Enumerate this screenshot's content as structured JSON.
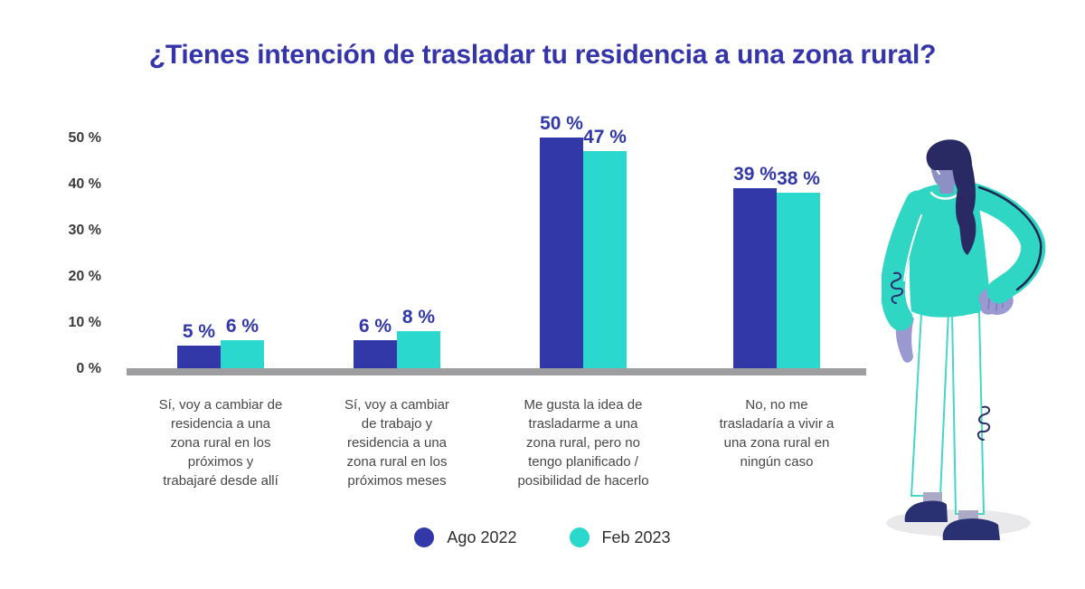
{
  "colors": {
    "series1": "#3238a8",
    "series2": "#2bd8cd",
    "title": "#3434ab",
    "value_label": "#3238a8",
    "axis_text": "#3b3b3b",
    "category_text": "#474747",
    "legend_text": "#2d2d2d",
    "baseline": "#9e9ea1"
  },
  "chart_data": {
    "type": "bar",
    "title": "¿Tienes intención de trasladar tu residencia a una zona rural?",
    "categories": [
      "Sí, voy a cambiar de\nresidencia a una\nzona rural en los\npróximos y\ntrabajaré desde allí",
      "Sí, voy a cambiar\nde trabajo y\nresidencia a una\nzona rural en los\npróximos meses",
      "Me gusta la idea de\ntrasladarme a una\nzona rural, pero no\ntengo planificado /\nposibilidad de hacerlo",
      "No, no me\ntrasladaría a vivir a\nuna zona rural en\nningún caso"
    ],
    "series": [
      {
        "name": "Ago 2022",
        "color": "#3238a8",
        "values": [
          5,
          6,
          50,
          39
        ]
      },
      {
        "name": "Feb 2023",
        "color": "#2bd8cd",
        "values": [
          6,
          8,
          47,
          38
        ]
      }
    ],
    "value_suffix": " %",
    "ylim": [
      0,
      50
    ],
    "ytick_values": [
      0,
      10,
      20,
      30,
      40,
      50
    ],
    "ytick_labels": [
      "0 %",
      "10 %",
      "20 %",
      "30 %",
      "40 %",
      "50 %"
    ],
    "grid": false,
    "legend_position": "bottom"
  },
  "illustration": {
    "name": "standing-woman-illustration"
  }
}
